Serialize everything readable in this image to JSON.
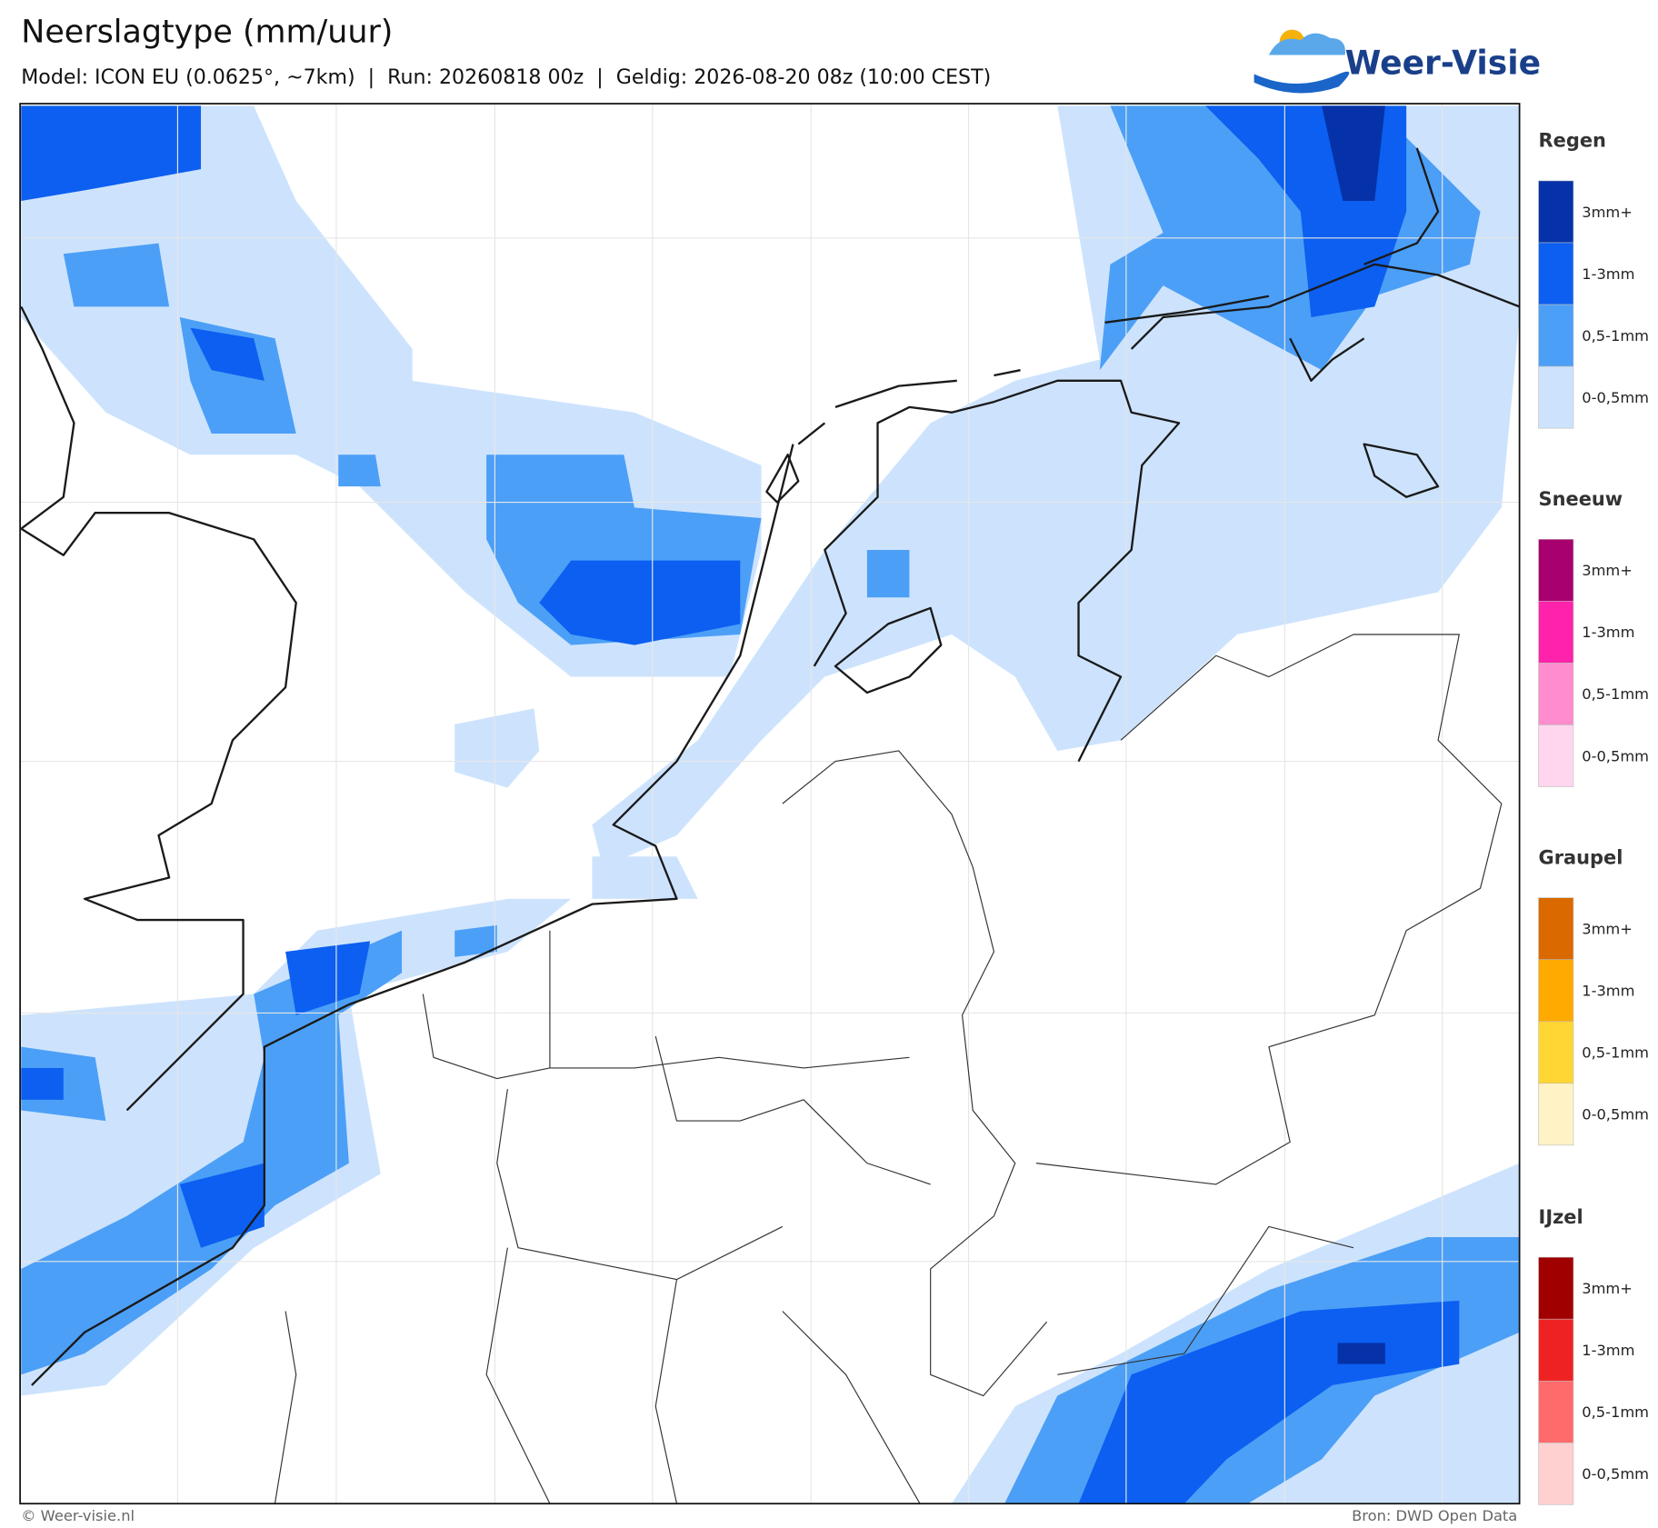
{
  "header": {
    "title": "Neerslagtype (mm/uur)",
    "subtitle": "Model: ICON EU (0.0625°, ~7km)  |  Run: 20260818 00z  |  Geldig: 2026-08-20 08z (10:00 CEST)",
    "logo": "Weer-Visie"
  },
  "legend": [
    {
      "title": "Regen",
      "items": [
        {
          "label": "3mm+",
          "color": "#0532a8"
        },
        {
          "label": "1-3mm",
          "color": "#0c5ff0"
        },
        {
          "label": "0,5-1mm",
          "color": "#4c9ff6"
        },
        {
          "label": "0-0,5mm",
          "color": "#cde3fd"
        }
      ]
    },
    {
      "title": "Sneeuw",
      "items": [
        {
          "label": "3mm+",
          "color": "#a8006e"
        },
        {
          "label": "1-3mm",
          "color": "#ff22aa"
        },
        {
          "label": "0,5-1mm",
          "color": "#ff8ccc"
        },
        {
          "label": "0-0,5mm",
          "color": "#ffd6ee"
        }
      ]
    },
    {
      "title": "Graupel",
      "items": [
        {
          "label": "3mm+",
          "color": "#da6a00"
        },
        {
          "label": "1-3mm",
          "color": "#ffaa00"
        },
        {
          "label": "0,5-1mm",
          "color": "#ffd633"
        },
        {
          "label": "0-0,5mm",
          "color": "#fff2c4"
        }
      ]
    },
    {
      "title": "IJzel",
      "items": [
        {
          "label": "3mm+",
          "color": "#a00000"
        },
        {
          "label": "1-3mm",
          "color": "#ee2222"
        },
        {
          "label": "0,5-1mm",
          "color": "#ff6b6b"
        },
        {
          "label": "0-0,5mm",
          "color": "#ffd0d0"
        }
      ]
    }
  ],
  "footer": {
    "left": "© Weer-visie.nl",
    "right": "Bron: DWD Open Data"
  }
}
